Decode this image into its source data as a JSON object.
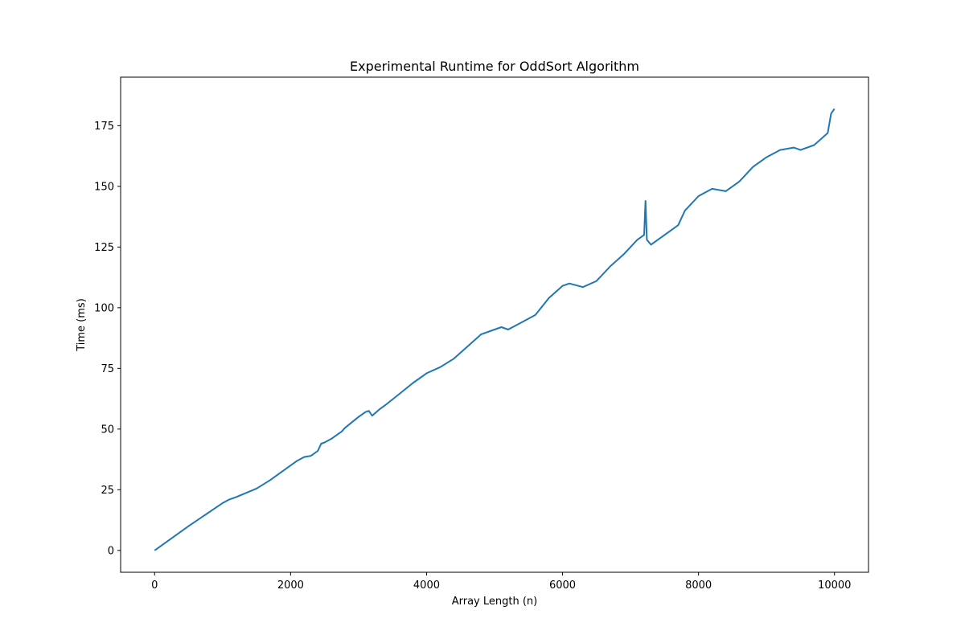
{
  "chart_data": {
    "type": "line",
    "title": "Experimental Runtime for OddSort Algorithm",
    "xlabel": "Array Length (n)",
    "ylabel": "Time (ms)",
    "xlim": [
      -500,
      10500
    ],
    "ylim": [
      -9,
      195
    ],
    "xticks": [
      0,
      2000,
      4000,
      6000,
      8000,
      10000
    ],
    "yticks": [
      0,
      25,
      50,
      75,
      100,
      125,
      150,
      175
    ],
    "grid": false,
    "series": [
      {
        "color": "#1f77b4",
        "x": [
          0,
          500,
          1000,
          1100,
          1200,
          1500,
          1700,
          2000,
          2100,
          2200,
          2300,
          2400,
          2450,
          2500,
          2600,
          2700,
          2750,
          2800,
          3000,
          3100,
          3150,
          3200,
          3300,
          3400,
          3600,
          3800,
          4000,
          4200,
          4400,
          4600,
          4800,
          5000,
          5100,
          5200,
          5400,
          5600,
          5800,
          6000,
          6100,
          6300,
          6500,
          6700,
          6900,
          7100,
          7200,
          7220,
          7240,
          7300,
          7500,
          7700,
          7800,
          8000,
          8200,
          8400,
          8600,
          8700,
          8800,
          9000,
          9200,
          9400,
          9500,
          9700,
          9900,
          9950,
          10000
        ],
        "y": [
          0,
          10,
          19.5,
          21,
          22,
          25.5,
          29,
          35,
          37,
          38.5,
          39,
          41,
          44,
          44.5,
          46,
          48,
          49,
          50.5,
          55,
          57,
          57.5,
          55.5,
          58,
          60,
          64.5,
          69,
          73,
          75.5,
          79,
          84,
          89,
          91,
          92,
          91,
          94,
          97,
          104,
          109,
          110,
          108.5,
          111,
          117,
          122,
          128,
          130,
          144,
          128,
          126,
          130,
          134,
          140,
          146,
          149,
          148,
          152,
          155,
          158,
          162,
          165,
          166,
          165,
          167,
          172,
          180,
          182
        ]
      }
    ],
    "annotations": []
  }
}
